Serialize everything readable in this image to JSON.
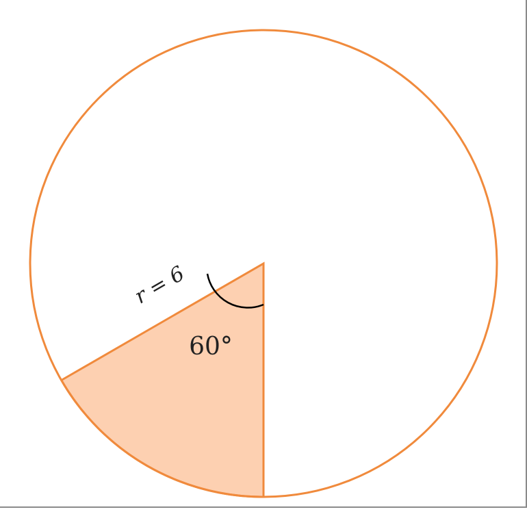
{
  "figure": {
    "radius_label": "r = 6",
    "angle_label": "60°",
    "radius": 6,
    "sector_angle_deg": 60
  },
  "colors": {
    "circle_stroke": "#f08a3c",
    "sector_fill": "#fdd0b1",
    "sector_stroke": "#f08a3c",
    "angle_arc": "#000000",
    "label": "#222222"
  }
}
